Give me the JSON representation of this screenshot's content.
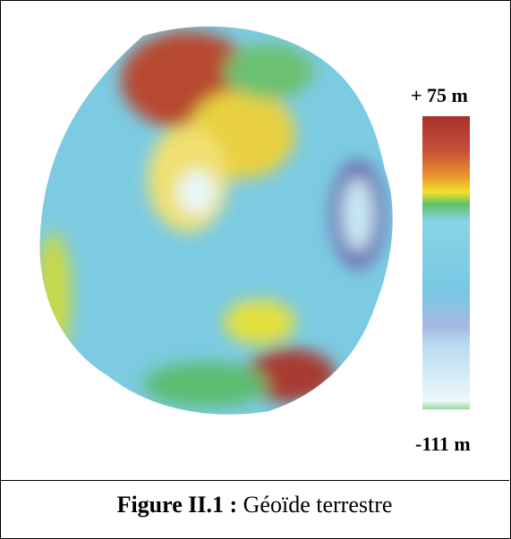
{
  "figure": {
    "scale": {
      "max_label": "+ 75 m",
      "min_label": "-111 m"
    },
    "caption": {
      "label": "Figure II.1 :",
      "text": "Géoïde terrestre"
    }
  }
}
